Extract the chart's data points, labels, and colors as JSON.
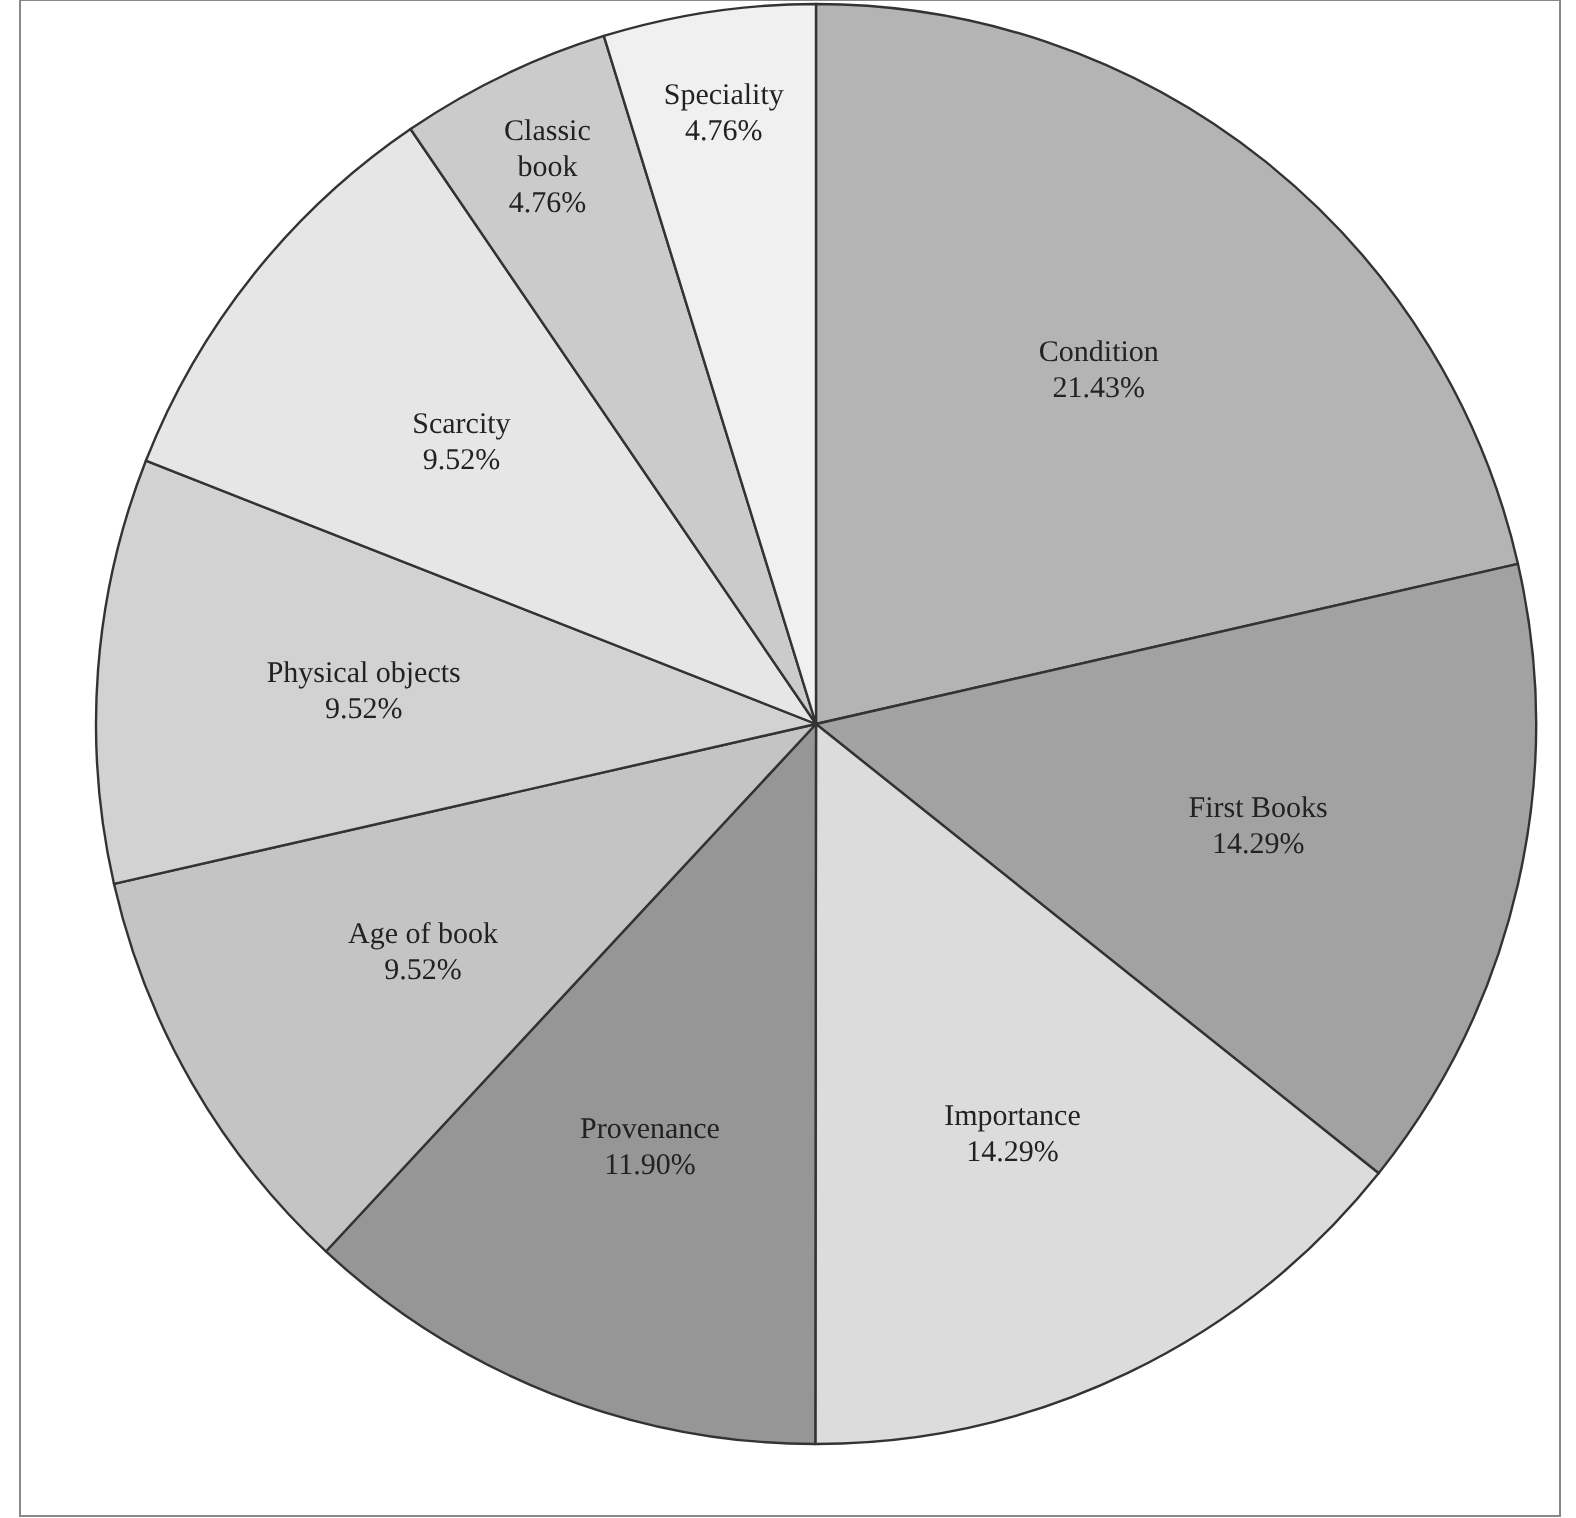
{
  "chart_data": {
    "type": "pie",
    "categories": [
      "Condition",
      "First Books",
      "Importance",
      "Provenance",
      "Age of book",
      "Physical objects",
      "Scarcity",
      "Classic book",
      "Speciality"
    ],
    "values": [
      21.43,
      14.29,
      14.29,
      11.9,
      9.52,
      9.52,
      9.52,
      4.76,
      4.76
    ],
    "value_labels": [
      "21.43%",
      "14.29%",
      "14.29%",
      "11.90%",
      "9.52%",
      "9.52%",
      "9.52%",
      "4.76%",
      "4.76%"
    ],
    "colors": [
      "#b4b4b4",
      "#a2a2a2",
      "#dcdcdc",
      "#969696",
      "#c4c4c4",
      "#d2d2d2",
      "#e6e6e6",
      "#cbcbcb",
      "#f0f0f0"
    ]
  }
}
